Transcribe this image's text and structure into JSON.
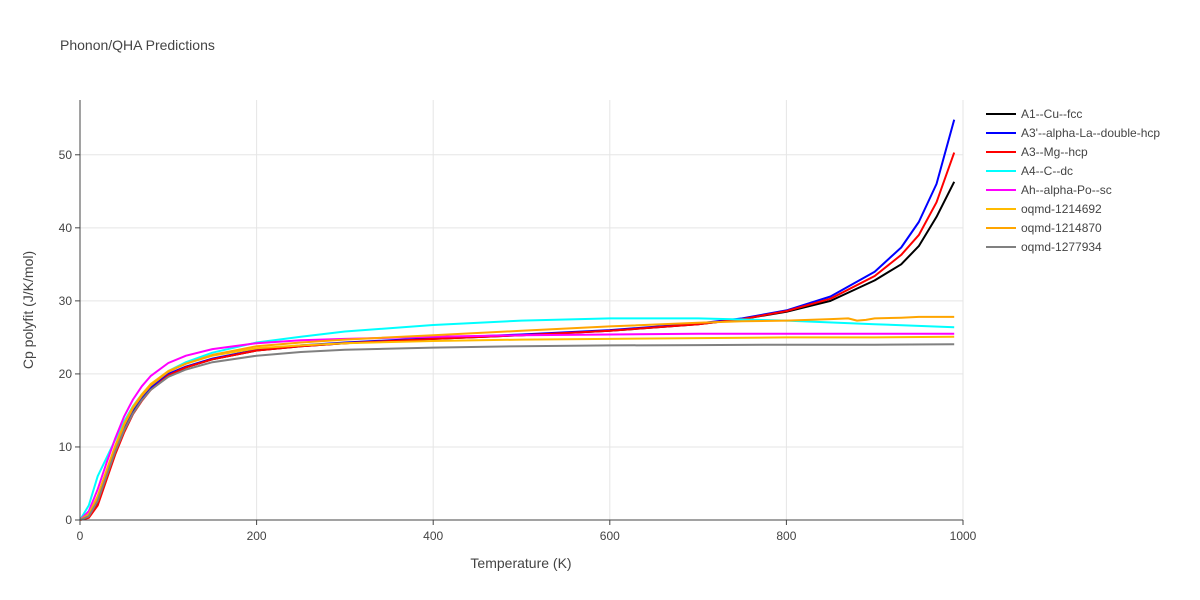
{
  "chart_data": {
    "type": "line",
    "title": "Phonon/QHA Predictions",
    "xlabel": "Temperature (K)",
    "ylabel": "Cp polyfit (J/K/mol)",
    "xlim": [
      0,
      1000
    ],
    "ylim": [
      0,
      57.5
    ],
    "xticks": [
      0,
      200,
      400,
      600,
      800,
      1000
    ],
    "yticks": [
      0,
      10,
      20,
      30,
      40,
      50
    ],
    "grid": true,
    "legend_position": "right",
    "series": [
      {
        "name": "A1--Cu--fcc",
        "color": "#000000",
        "x": [
          0,
          10,
          20,
          30,
          40,
          50,
          60,
          70,
          80,
          100,
          120,
          150,
          200,
          250,
          300,
          400,
          500,
          600,
          700,
          750,
          800,
          850,
          900,
          930,
          950,
          970,
          990
        ],
        "y": [
          0,
          0.5,
          2.5,
          6,
          9.5,
          12.5,
          14.8,
          16.5,
          17.9,
          19.8,
          20.9,
          22,
          23.2,
          23.8,
          24.2,
          24.8,
          25.3,
          25.9,
          26.8,
          27.5,
          28.5,
          30,
          32.8,
          35,
          37.5,
          41.5,
          46.3
        ]
      },
      {
        "name": "A3'--alpha-La--double-hcp",
        "color": "#0000ff",
        "x": [
          0,
          10,
          20,
          30,
          40,
          50,
          60,
          70,
          80,
          100,
          120,
          150,
          200,
          250,
          300,
          400,
          500,
          600,
          700,
          750,
          800,
          850,
          900,
          930,
          950,
          970,
          990
        ],
        "y": [
          0,
          0.6,
          2.7,
          6.3,
          9.8,
          12.8,
          15.1,
          16.8,
          18.1,
          20,
          21,
          22.1,
          23.3,
          23.9,
          24.3,
          24.9,
          25.4,
          26,
          26.9,
          27.6,
          28.7,
          30.6,
          34,
          37.3,
          40.8,
          46,
          54.8
        ]
      },
      {
        "name": "A3--Mg--hcp",
        "color": "#ff0000",
        "x": [
          0,
          10,
          20,
          30,
          40,
          50,
          60,
          70,
          80,
          100,
          120,
          150,
          200,
          250,
          300,
          400,
          500,
          600,
          700,
          750,
          800,
          850,
          900,
          930,
          950,
          970,
          990
        ],
        "y": [
          0,
          0.3,
          2,
          5.5,
          9,
          12,
          14.5,
          16.3,
          17.8,
          19.8,
          20.9,
          22,
          23.2,
          23.8,
          24.2,
          24.8,
          25.3,
          25.9,
          26.8,
          27.5,
          28.6,
          30.3,
          33.4,
          36.3,
          39,
          43.5,
          50.3
        ]
      },
      {
        "name": "A4--C--dc",
        "color": "#00ffff",
        "x": [
          0,
          10,
          20,
          30,
          40,
          50,
          60,
          70,
          80,
          100,
          120,
          150,
          200,
          250,
          300,
          400,
          500,
          600,
          700,
          800,
          900,
          990
        ],
        "y": [
          0,
          2,
          6,
          8.5,
          11,
          13.5,
          15.6,
          17.2,
          18.5,
          20.4,
          21.6,
          22.9,
          24.3,
          25.1,
          25.8,
          26.7,
          27.3,
          27.6,
          27.6,
          27.3,
          26.8,
          26.4
        ]
      },
      {
        "name": "Ah--alpha-Po--sc",
        "color": "#ff00ff",
        "x": [
          0,
          10,
          20,
          30,
          40,
          50,
          60,
          70,
          80,
          100,
          120,
          150,
          200,
          250,
          300,
          400,
          500,
          600,
          700,
          800,
          900,
          990
        ],
        "y": [
          0,
          1.2,
          4.2,
          7.8,
          11.2,
          14.2,
          16.5,
          18.3,
          19.7,
          21.5,
          22.5,
          23.4,
          24.2,
          24.6,
          24.8,
          25.1,
          25.3,
          25.4,
          25.5,
          25.5,
          25.5,
          25.5
        ]
      },
      {
        "name": "oqmd-1214692",
        "color": "#ffbb00",
        "x": [
          0,
          10,
          20,
          30,
          40,
          50,
          60,
          70,
          80,
          100,
          120,
          150,
          200,
          250,
          300,
          400,
          500,
          600,
          700,
          800,
          900,
          990
        ],
        "y": [
          0,
          0.8,
          3.3,
          6.8,
          10.2,
          13.2,
          15.5,
          17.2,
          18.6,
          20.4,
          21.4,
          22.5,
          23.5,
          23.9,
          24.2,
          24.5,
          24.7,
          24.8,
          24.9,
          25,
          25,
          25.1
        ]
      },
      {
        "name": "oqmd-1214870",
        "color": "#ffa500",
        "x": [
          0,
          10,
          20,
          30,
          40,
          50,
          60,
          70,
          80,
          100,
          120,
          150,
          200,
          250,
          300,
          400,
          500,
          600,
          700,
          750,
          800,
          850,
          870,
          880,
          890,
          900,
          930,
          950,
          970,
          990
        ],
        "y": [
          0,
          0.7,
          3,
          6.5,
          10,
          13,
          15.3,
          17,
          18.4,
          20.3,
          21.4,
          22.6,
          23.8,
          24.3,
          24.7,
          25.3,
          25.9,
          26.5,
          27,
          27.2,
          27.3,
          27.5,
          27.6,
          27.3,
          27.4,
          27.6,
          27.7,
          27.8,
          27.8,
          27.8
        ]
      },
      {
        "name": "oqmd-1277934",
        "color": "#808080",
        "x": [
          0,
          10,
          20,
          30,
          40,
          50,
          60,
          70,
          80,
          100,
          120,
          150,
          200,
          250,
          300,
          400,
          500,
          600,
          700,
          800,
          900,
          990
        ],
        "y": [
          0,
          0.5,
          2.6,
          6,
          9.4,
          12.3,
          14.6,
          16.4,
          17.8,
          19.6,
          20.6,
          21.6,
          22.5,
          23,
          23.3,
          23.6,
          23.8,
          23.9,
          23.95,
          24,
          24,
          24.05
        ]
      }
    ]
  }
}
